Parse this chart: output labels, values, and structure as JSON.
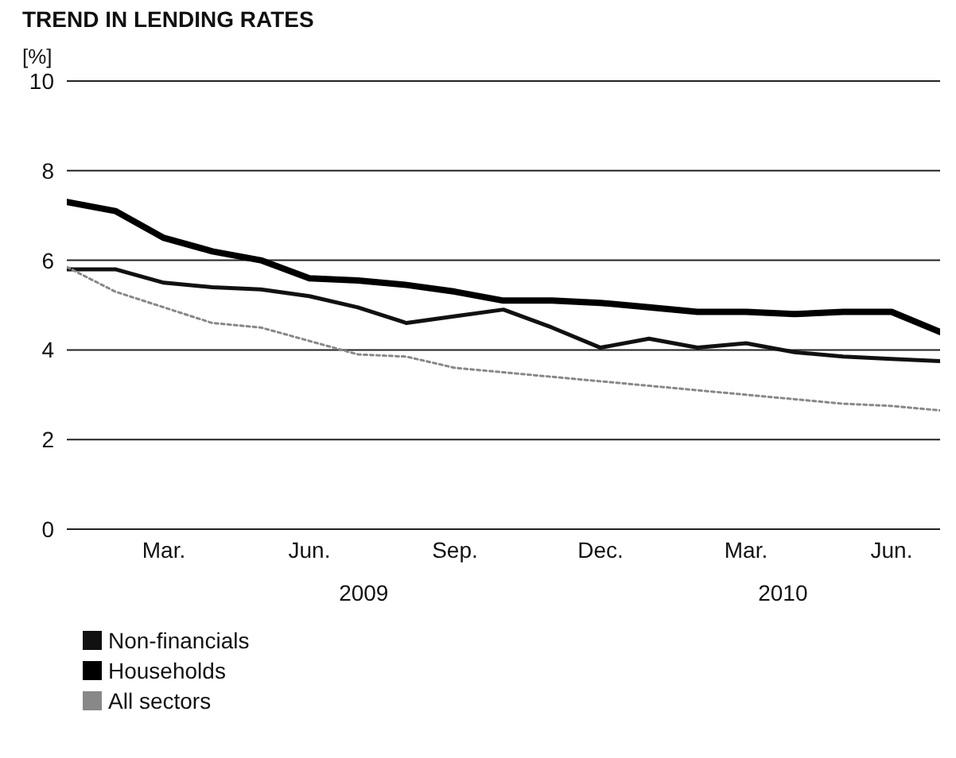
{
  "chart_data": {
    "type": "line",
    "title": "TREND IN LENDING RATES",
    "ylabel": "[%]",
    "x": [
      "2009-01",
      "2009-02",
      "2009-03",
      "2009-04",
      "2009-05",
      "2009-06",
      "2009-07",
      "2009-08",
      "2009-09",
      "2009-10",
      "2009-11",
      "2009-12",
      "2010-01",
      "2010-02",
      "2010-03",
      "2010-04",
      "2010-05",
      "2010-06",
      "2010-07"
    ],
    "series": [
      {
        "name": "Non-financials",
        "color": "#111111",
        "line_style": "solid",
        "values": [
          5.8,
          5.8,
          5.5,
          5.4,
          5.35,
          5.2,
          4.95,
          4.6,
          4.75,
          4.9,
          4.5,
          4.05,
          4.25,
          4.05,
          4.15,
          3.95,
          3.85,
          3.8,
          3.75
        ]
      },
      {
        "name": "Households",
        "color": "#000000",
        "line_style": "solid",
        "values": [
          7.3,
          7.1,
          6.5,
          6.2,
          6.0,
          5.6,
          5.55,
          5.45,
          5.3,
          5.1,
          5.1,
          5.05,
          4.95,
          4.85,
          4.85,
          4.8,
          4.85,
          4.85,
          4.4
        ]
      },
      {
        "name": "All sectors",
        "color": "#888888",
        "line_style": "dotted",
        "values": [
          5.85,
          5.3,
          4.95,
          4.6,
          4.5,
          4.2,
          3.9,
          3.85,
          3.6,
          3.5,
          3.4,
          3.3,
          3.2,
          3.1,
          3.0,
          2.9,
          2.8,
          2.75,
          2.65
        ]
      }
    ],
    "xlim": [
      "2009-01",
      "2010-07"
    ],
    "xticks": [
      {
        "value": "2009-03",
        "label": "Mar."
      },
      {
        "value": "2009-06",
        "label": "Jun."
      },
      {
        "value": "2009-09",
        "label": "Sep."
      },
      {
        "value": "2009-12",
        "label": "Dec."
      },
      {
        "value": "2010-03",
        "label": "Mar."
      },
      {
        "value": "2010-06",
        "label": "Jun."
      }
    ],
    "ylim": [
      0,
      10
    ],
    "yticks": [
      0,
      2,
      4,
      6,
      8,
      10
    ],
    "annotations": [
      "2009",
      "2010"
    ],
    "grid": "y",
    "legend": "bottom left",
    "marker": "none"
  }
}
